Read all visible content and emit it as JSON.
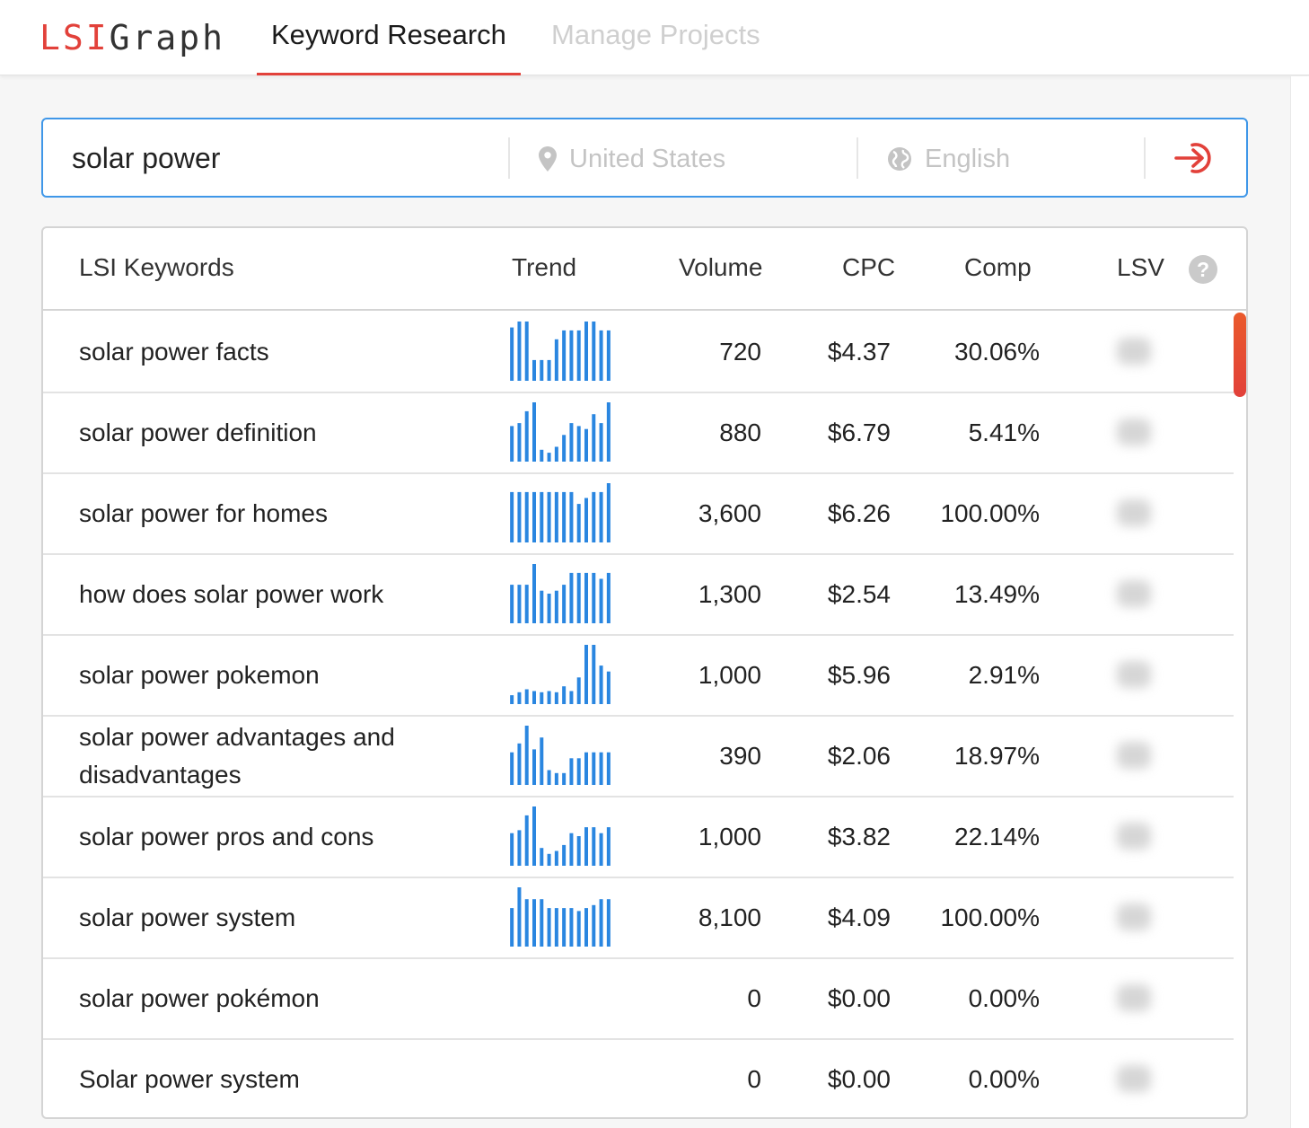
{
  "app": {
    "logo_part1": "LSI",
    "logo_part2": "Graph"
  },
  "nav": {
    "active_tab": "Keyword Research",
    "inactive_tab": "Manage Projects"
  },
  "search": {
    "query": "solar power",
    "location_placeholder": "United States",
    "language_placeholder": "English"
  },
  "colors": {
    "accent": "#e2413a",
    "focus_border": "#3f97e8",
    "trend_bar": "#2a86e0"
  },
  "table": {
    "headers": {
      "keyword": "LSI Keywords",
      "trend": "Trend",
      "volume": "Volume",
      "cpc": "CPC",
      "comp": "Comp",
      "lsv": "LSV",
      "help": "?"
    },
    "rows": [
      {
        "keyword": "solar power facts",
        "trend": [
          0.9,
          1,
          1,
          0.35,
          0.35,
          0.35,
          0.7,
          0.85,
          0.85,
          0.85,
          1,
          1,
          0.85,
          0.85
        ],
        "volume": "720",
        "cpc": "$4.37",
        "comp": "30.06%"
      },
      {
        "keyword": "solar power definition",
        "trend": [
          0.6,
          0.65,
          0.85,
          1,
          0.2,
          0.15,
          0.25,
          0.45,
          0.65,
          0.6,
          0.55,
          0.8,
          0.65,
          1
        ],
        "volume": "880",
        "cpc": "$6.79",
        "comp": "5.41%"
      },
      {
        "keyword": "solar power for homes",
        "trend": [
          0.85,
          0.85,
          0.85,
          0.85,
          0.85,
          0.85,
          0.85,
          0.85,
          0.85,
          0.65,
          0.75,
          0.85,
          0.85,
          1
        ],
        "volume": "3,600",
        "cpc": "$6.26",
        "comp": "100.00%"
      },
      {
        "keyword": "how does solar power work",
        "trend": [
          0.65,
          0.65,
          0.65,
          1,
          0.55,
          0.5,
          0.55,
          0.65,
          0.85,
          0.85,
          0.85,
          0.85,
          0.75,
          0.85
        ],
        "volume": "1,300",
        "cpc": "$2.54",
        "comp": "13.49%"
      },
      {
        "keyword": "solar power pokemon",
        "trend": [
          0.15,
          0.2,
          0.25,
          0.22,
          0.2,
          0.22,
          0.2,
          0.3,
          0.22,
          0.45,
          1,
          1,
          0.65,
          0.55
        ],
        "volume": "1,000",
        "cpc": "$5.96",
        "comp": "2.91%"
      },
      {
        "keyword": "solar power advantages and disadvantages",
        "trend": [
          0.55,
          0.7,
          1,
          0.6,
          0.8,
          0.25,
          0.2,
          0.2,
          0.45,
          0.45,
          0.55,
          0.55,
          0.55,
          0.55
        ],
        "volume": "390",
        "cpc": "$2.06",
        "comp": "18.97%"
      },
      {
        "keyword": "solar power pros and cons",
        "trend": [
          0.55,
          0.6,
          0.85,
          1,
          0.3,
          0.2,
          0.25,
          0.35,
          0.55,
          0.5,
          0.65,
          0.65,
          0.55,
          0.65
        ],
        "volume": "1,000",
        "cpc": "$3.82",
        "comp": "22.14%"
      },
      {
        "keyword": "solar power system",
        "trend": [
          0.65,
          1,
          0.8,
          0.8,
          0.8,
          0.65,
          0.65,
          0.65,
          0.65,
          0.6,
          0.65,
          0.7,
          0.8,
          0.8
        ],
        "volume": "8,100",
        "cpc": "$4.09",
        "comp": "100.00%"
      },
      {
        "keyword": "solar power pokémon",
        "trend": [],
        "volume": "0",
        "cpc": "$0.00",
        "comp": "0.00%"
      },
      {
        "keyword": "Solar power system",
        "trend": [],
        "volume": "0",
        "cpc": "$0.00",
        "comp": "0.00%"
      }
    ]
  }
}
